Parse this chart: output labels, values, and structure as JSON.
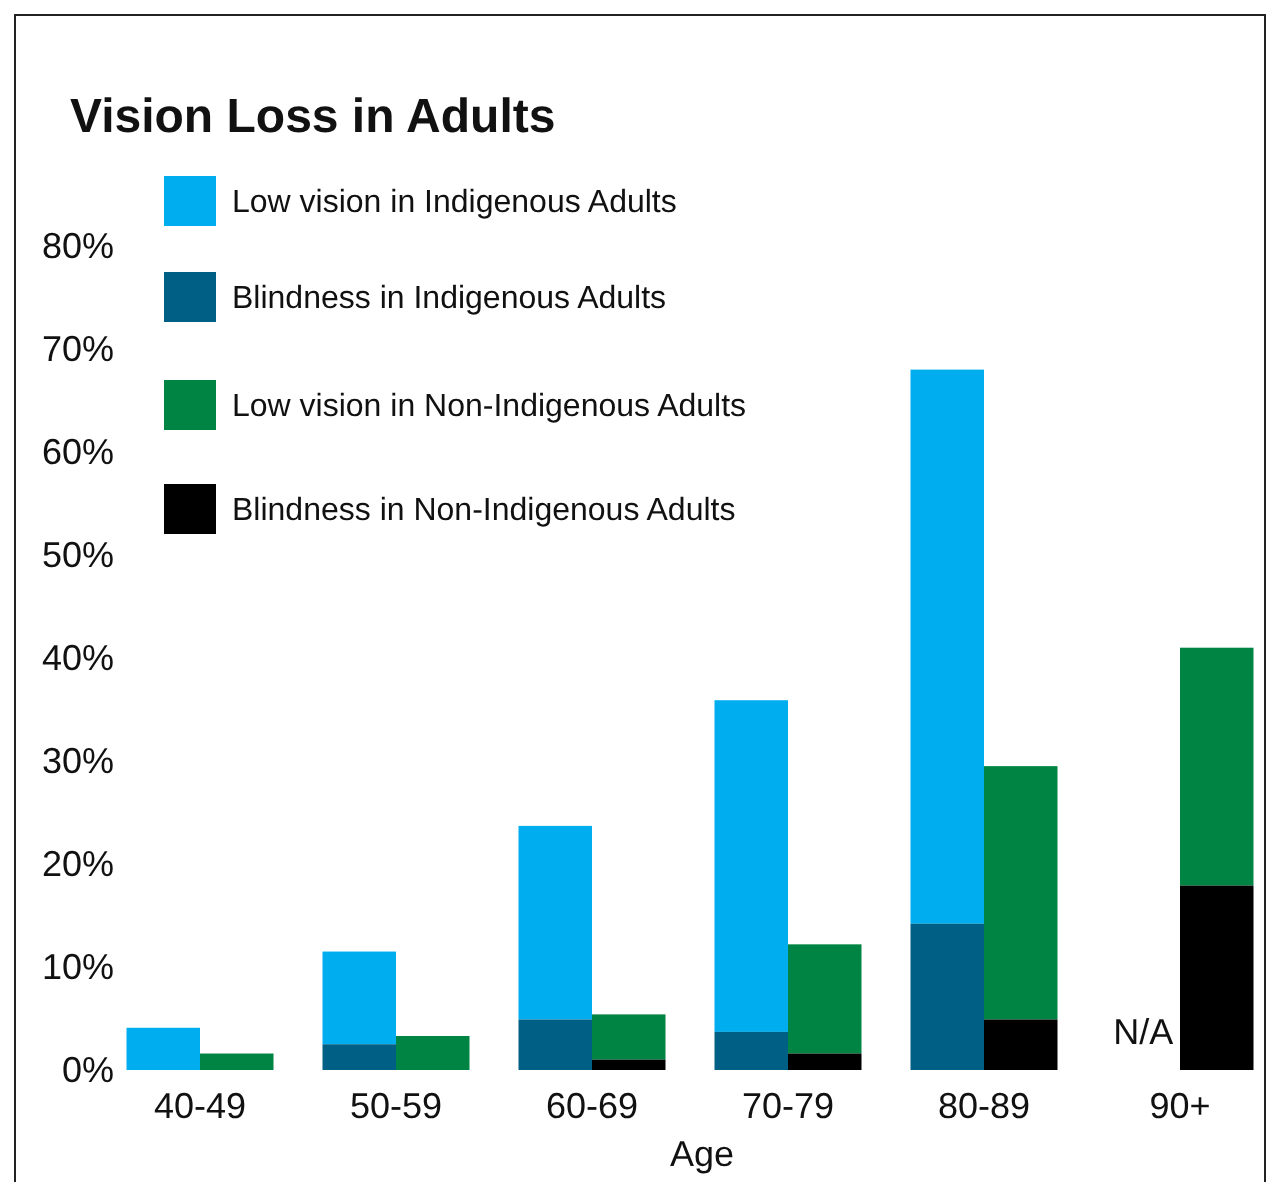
{
  "chart_data": {
    "type": "bar",
    "title": "Vision Loss in Adults",
    "xlabel": "Age",
    "categories": [
      "40-49",
      "50-59",
      "60-69",
      "70-79",
      "80-89",
      "90+"
    ],
    "legend": "top left",
    "ylim": [
      0,
      80
    ],
    "yticks": [
      {
        "value": 0,
        "label": "0%"
      },
      {
        "value": 10,
        "label": "10%"
      },
      {
        "value": 20,
        "label": "20%"
      },
      {
        "value": 30,
        "label": "30%"
      },
      {
        "value": 40,
        "label": "40%"
      },
      {
        "value": 50,
        "label": "50%"
      },
      {
        "value": 60,
        "label": "60%"
      },
      {
        "value": 70,
        "label": "70%"
      },
      {
        "value": 80,
        "label": "80%"
      }
    ],
    "series": [
      {
        "name": "Low vision in Indigenous Adults",
        "color": "#00aeef",
        "base": [
          0,
          2.5,
          4.9,
          3.7,
          14.2,
          null
        ],
        "values": [
          4.1,
          9.0,
          18.8,
          32.2,
          53.8,
          null
        ]
      },
      {
        "name": "Blindness in Indigenous Adults",
        "color": "#005f85",
        "values": [
          0,
          2.5,
          4.9,
          3.7,
          14.2,
          null
        ]
      },
      {
        "name": "Low vision in Non-Indigenous Adults",
        "color": "#008443",
        "base": [
          0,
          0,
          1.0,
          1.6,
          4.9,
          17.9
        ],
        "values": [
          1.6,
          3.3,
          4.4,
          10.6,
          24.6,
          23.1
        ]
      },
      {
        "name": "Blindness in Non-Indigenous Adults",
        "color": "#000000",
        "values": [
          0,
          0,
          1.0,
          1.6,
          4.9,
          17.9
        ]
      }
    ],
    "annotations": [
      "N/A"
    ]
  }
}
